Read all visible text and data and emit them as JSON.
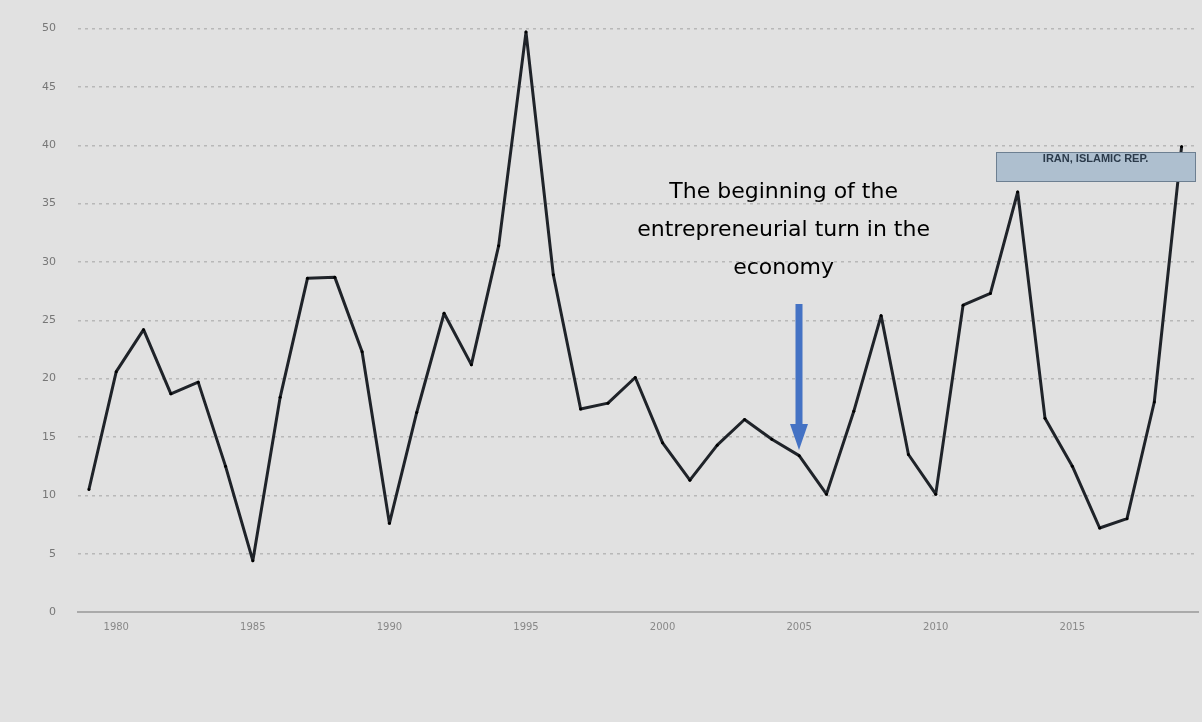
{
  "chart_data": {
    "type": "line",
    "x": [
      1979,
      1980,
      1981,
      1982,
      1983,
      1984,
      1985,
      1986,
      1987,
      1988,
      1989,
      1990,
      1991,
      1992,
      1993,
      1994,
      1995,
      1996,
      1997,
      1998,
      1999,
      2000,
      2001,
      2002,
      2003,
      2004,
      2005,
      2006,
      2007,
      2008,
      2009,
      2010,
      2011,
      2012,
      2013,
      2014,
      2015,
      2016,
      2017,
      2018,
      2019
    ],
    "series": [
      {
        "name": "IRAN, ISLAMIC REP.",
        "color": "#1f2329",
        "values": [
          10.5,
          20.6,
          24.2,
          18.7,
          19.7,
          12.5,
          4.4,
          18.4,
          28.6,
          28.7,
          22.3,
          7.6,
          17.1,
          25.6,
          21.2,
          31.4,
          49.7,
          28.9,
          17.4,
          17.9,
          20.1,
          14.5,
          11.3,
          14.3,
          16.5,
          14.8,
          13.4,
          10.1,
          17.2,
          25.4,
          13.5,
          10.1,
          26.3,
          27.3,
          36.0,
          16.6,
          12.5,
          7.2,
          8.0,
          18.0,
          39.9
        ]
      }
    ],
    "xlim": [
      1978.6,
      2019.6
    ],
    "xticks": [
      1980,
      1985,
      1990,
      1995,
      2000,
      2005,
      2010,
      2015
    ],
    "ylim": [
      0,
      50
    ],
    "yticks": [
      0,
      5,
      10,
      15,
      20,
      25,
      30,
      35,
      40,
      45,
      50
    ],
    "grid": "y",
    "line_style": "solid",
    "marker": "none",
    "legend": false,
    "annotations": [
      "The beginning of the entrepreneurial turn in the economy"
    ]
  }
}
